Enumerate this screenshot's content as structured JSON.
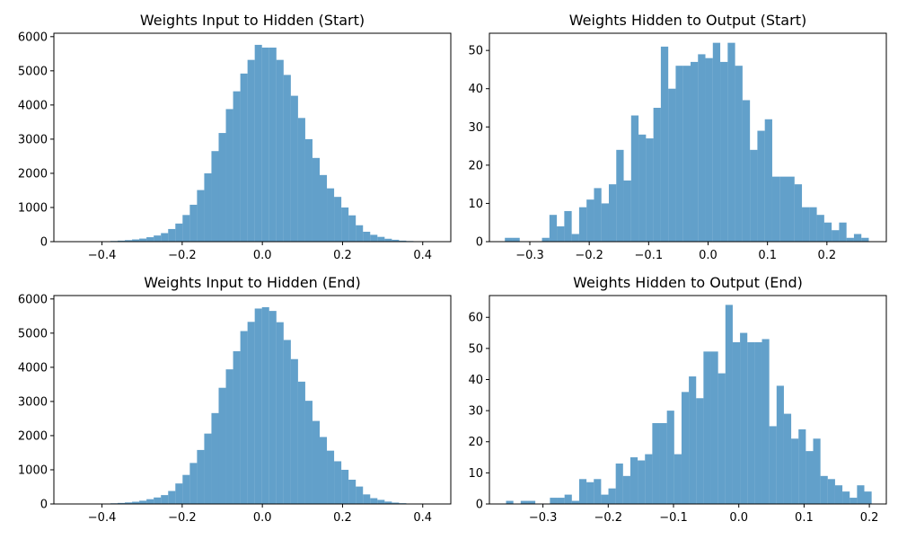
{
  "colors": {
    "bar": "#1f77b4",
    "bar_opacity": 0.7,
    "axes": "#000000",
    "background": "#ffffff"
  },
  "chart_data": [
    {
      "type": "bar",
      "title": "Weights Input to Hidden (Start)",
      "xlim": [
        -0.52,
        0.47
      ],
      "ylim": [
        0,
        6100
      ],
      "xticks": [
        -0.4,
        -0.2,
        0.0,
        0.2,
        0.4
      ],
      "xtick_labels": [
        "−0.4",
        "−0.2",
        "0.0",
        "0.2",
        "0.4"
      ],
      "yticks": [
        0,
        1000,
        2000,
        3000,
        4000,
        5000,
        6000
      ],
      "ytick_labels": [
        "0",
        "1000",
        "2000",
        "3000",
        "4000",
        "5000",
        "6000"
      ],
      "bin_edges": [
        -0.469,
        -0.451,
        -0.433,
        -0.415,
        -0.397,
        -0.379,
        -0.361,
        -0.343,
        -0.325,
        -0.307,
        -0.289,
        -0.271,
        -0.253,
        -0.235,
        -0.217,
        -0.199,
        -0.181,
        -0.163,
        -0.145,
        -0.127,
        -0.109,
        -0.091,
        -0.073,
        -0.055,
        -0.037,
        -0.019,
        -0.001,
        0.017,
        0.035,
        0.053,
        0.071,
        0.089,
        0.107,
        0.125,
        0.143,
        0.161,
        0.179,
        0.197,
        0.215,
        0.233,
        0.251,
        0.269,
        0.287,
        0.305,
        0.323,
        0.341,
        0.359,
        0.377,
        0.395,
        0.413,
        0.431
      ],
      "counts": [
        2,
        3,
        5,
        8,
        12,
        20,
        30,
        45,
        65,
        90,
        130,
        180,
        250,
        370,
        530,
        780,
        1080,
        1510,
        2000,
        2650,
        3180,
        3880,
        4400,
        4920,
        5320,
        5760,
        5680,
        5680,
        5320,
        4880,
        4270,
        3620,
        3000,
        2450,
        1950,
        1560,
        1310,
        1000,
        770,
        480,
        290,
        200,
        140,
        85,
        55,
        30,
        18,
        10,
        5,
        2
      ]
    },
    {
      "type": "bar",
      "title": "Weights Hidden to Output (Start)",
      "xlim": [
        -0.368,
        0.3
      ],
      "ylim": [
        0,
        54.5
      ],
      "xticks": [
        -0.3,
        -0.2,
        -0.1,
        0.0,
        0.1,
        0.2
      ],
      "xtick_labels": [
        "−0.3",
        "−0.2",
        "−0.1",
        "0.0",
        "0.1",
        "0.2"
      ],
      "yticks": [
        0,
        10,
        20,
        30,
        40,
        50
      ],
      "ytick_labels": [
        "0",
        "10",
        "20",
        "30",
        "40",
        "50"
      ],
      "bin_edges": [
        -0.342,
        -0.3295,
        -0.317,
        -0.3045,
        -0.292,
        -0.2795,
        -0.267,
        -0.2545,
        -0.242,
        -0.2295,
        -0.217,
        -0.2045,
        -0.192,
        -0.1795,
        -0.167,
        -0.1545,
        -0.142,
        -0.1295,
        -0.117,
        -0.1045,
        -0.092,
        -0.0795,
        -0.067,
        -0.0545,
        -0.042,
        -0.0295,
        -0.017,
        -0.0045,
        0.008,
        0.0205,
        0.033,
        0.0455,
        0.058,
        0.0705,
        0.083,
        0.0955,
        0.108,
        0.1205,
        0.133,
        0.1455,
        0.158,
        0.1705,
        0.183,
        0.1955,
        0.208,
        0.2205,
        0.233,
        0.2455,
        0.258,
        0.2705,
        0.283
      ],
      "counts": [
        1,
        1,
        0,
        0,
        0,
        1,
        7,
        4,
        8,
        2,
        9,
        11,
        14,
        10,
        15,
        24,
        16,
        33,
        28,
        27,
        35,
        51,
        40,
        46,
        46,
        47,
        49,
        48,
        52,
        47,
        52,
        46,
        37,
        24,
        29,
        32,
        17,
        17,
        17,
        15,
        9,
        9,
        7,
        5,
        3,
        5,
        1,
        2,
        1,
        0
      ]
    },
    {
      "type": "bar",
      "title": "Weights Input to Hidden (End)",
      "xlim": [
        -0.52,
        0.47
      ],
      "ylim": [
        0,
        6100
      ],
      "xticks": [
        -0.4,
        -0.2,
        0.0,
        0.2,
        0.4
      ],
      "xtick_labels": [
        "−0.4",
        "−0.2",
        "0.0",
        "0.2",
        "0.4"
      ],
      "yticks": [
        0,
        1000,
        2000,
        3000,
        4000,
        5000,
        6000
      ],
      "ytick_labels": [
        "0",
        "1000",
        "2000",
        "3000",
        "4000",
        "5000",
        "6000"
      ],
      "bin_edges": [
        -0.469,
        -0.451,
        -0.433,
        -0.415,
        -0.397,
        -0.379,
        -0.361,
        -0.343,
        -0.325,
        -0.307,
        -0.289,
        -0.271,
        -0.253,
        -0.235,
        -0.217,
        -0.199,
        -0.181,
        -0.163,
        -0.145,
        -0.127,
        -0.109,
        -0.091,
        -0.073,
        -0.055,
        -0.037,
        -0.019,
        -0.001,
        0.017,
        0.035,
        0.053,
        0.071,
        0.089,
        0.107,
        0.125,
        0.143,
        0.161,
        0.179,
        0.197,
        0.215,
        0.233,
        0.251,
        0.269,
        0.287,
        0.305,
        0.323,
        0.341,
        0.359,
        0.377,
        0.395,
        0.413,
        0.431
      ],
      "counts": [
        2,
        3,
        5,
        8,
        12,
        20,
        30,
        45,
        65,
        95,
        140,
        190,
        260,
        380,
        600,
        850,
        1200,
        1580,
        2060,
        2660,
        3400,
        3940,
        4470,
        5060,
        5330,
        5720,
        5760,
        5650,
        5320,
        4800,
        4240,
        3580,
        3020,
        2430,
        1960,
        1560,
        1250,
        1000,
        710,
        510,
        280,
        170,
        120,
        70,
        40,
        22,
        12,
        6,
        3,
        1
      ]
    },
    {
      "type": "bar",
      "title": "Weights Hidden to Output (End)",
      "xlim": [
        -0.382,
        0.226
      ],
      "ylim": [
        0,
        67
      ],
      "xticks": [
        -0.3,
        -0.2,
        -0.1,
        0.0,
        0.1,
        0.2
      ],
      "xtick_labels": [
        "−0.3",
        "−0.2",
        "−0.1",
        "0.0",
        "0.1",
        "0.2"
      ],
      "yticks": [
        0,
        10,
        20,
        30,
        40,
        50,
        60
      ],
      "ytick_labels": [
        "0",
        "10",
        "20",
        "30",
        "40",
        "50",
        "60"
      ],
      "bin_edges": [
        -0.3565,
        -0.3453,
        -0.3341,
        -0.3229,
        -0.3117,
        -0.3005,
        -0.2893,
        -0.2781,
        -0.2669,
        -0.2557,
        -0.2445,
        -0.2333,
        -0.2221,
        -0.2109,
        -0.1997,
        -0.1885,
        -0.1773,
        -0.1661,
        -0.1549,
        -0.1437,
        -0.1325,
        -0.1213,
        -0.1101,
        -0.0989,
        -0.0877,
        -0.0765,
        -0.0653,
        -0.0541,
        -0.0429,
        -0.0317,
        -0.0205,
        -0.0093,
        0.0019,
        0.0131,
        0.0243,
        0.0355,
        0.0467,
        0.0579,
        0.0691,
        0.0803,
        0.0915,
        0.1027,
        0.1139,
        0.1251,
        0.1363,
        0.1475,
        0.1587,
        0.1699,
        0.1811,
        0.1923,
        0.2035
      ],
      "counts": [
        1,
        0,
        1,
        1,
        0,
        0,
        2,
        2,
        3,
        1,
        8,
        7,
        8,
        3,
        5,
        13,
        9,
        15,
        14,
        16,
        26,
        26,
        30,
        16,
        36,
        41,
        34,
        49,
        49,
        42,
        64,
        52,
        55,
        52,
        52,
        53,
        25,
        38,
        29,
        21,
        24,
        17,
        21,
        9,
        8,
        6,
        4,
        2,
        6,
        4
      ]
    }
  ]
}
